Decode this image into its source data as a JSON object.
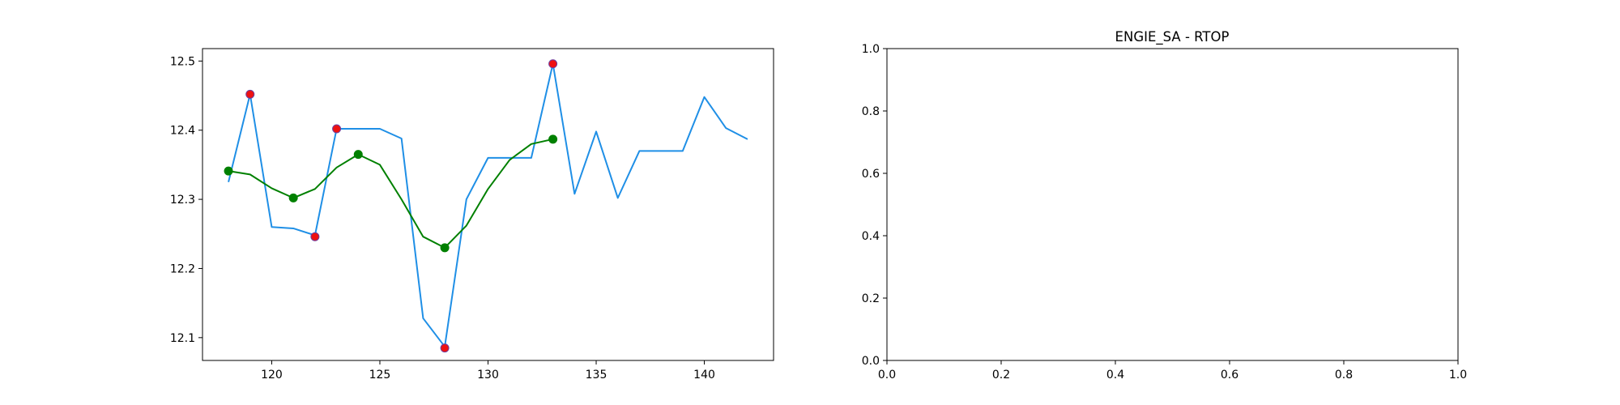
{
  "chart_data": [
    {
      "type": "line",
      "title": "",
      "xlabel": "",
      "ylabel": "",
      "xlim": [
        116.8,
        143.2
      ],
      "ylim": [
        12.067,
        12.518
      ],
      "x_ticks": [
        120,
        125,
        130,
        135,
        140
      ],
      "y_ticks": [
        12.1,
        12.2,
        12.3,
        12.4,
        12.5
      ],
      "grid": false,
      "legend": "none",
      "series": [
        {
          "style": "line",
          "color": "#1f8fe6",
          "x": [
            118,
            119,
            120,
            121,
            122,
            123,
            124,
            125,
            126,
            127,
            128,
            129,
            130,
            131,
            132,
            133,
            134,
            135,
            136,
            137,
            138,
            139,
            140,
            141,
            142
          ],
          "y": [
            12.325,
            12.452,
            12.26,
            12.258,
            12.248,
            12.402,
            12.402,
            12.402,
            12.388,
            12.128,
            12.087,
            12.3,
            12.36,
            12.36,
            12.36,
            12.496,
            12.308,
            12.398,
            12.302,
            12.37,
            12.37,
            12.37,
            12.448,
            12.403,
            12.387
          ]
        },
        {
          "style": "line",
          "color": "#008000",
          "x": [
            118,
            119,
            120,
            121,
            122,
            123,
            124,
            125,
            126,
            127,
            128,
            129,
            130,
            131,
            132,
            133
          ],
          "y": [
            12.341,
            12.336,
            12.316,
            12.302,
            12.315,
            12.346,
            12.365,
            12.35,
            12.3,
            12.246,
            12.23,
            12.262,
            12.315,
            12.357,
            12.38,
            12.387
          ]
        },
        {
          "style": "scatter",
          "color": "#ee1111",
          "x": [
            119,
            122,
            123,
            128,
            133
          ],
          "y": [
            12.452,
            12.246,
            12.402,
            12.085,
            12.496
          ]
        },
        {
          "style": "scatter",
          "color": "#008000",
          "x": [
            118,
            121,
            124,
            128,
            133
          ],
          "y": [
            12.341,
            12.302,
            12.365,
            12.23,
            12.387
          ]
        }
      ]
    },
    {
      "type": "line",
      "title": "ENGIE_SA - RTOP",
      "xlabel": "",
      "ylabel": "",
      "xlim": [
        0,
        1
      ],
      "ylim": [
        0,
        1
      ],
      "x_ticks": [
        "0.0",
        "0.2",
        "0.4",
        "0.6",
        "0.8",
        "1.0"
      ],
      "y_ticks": [
        "0.0",
        "0.2",
        "0.4",
        "0.6",
        "0.8",
        "1.0"
      ],
      "grid": false,
      "legend": "none",
      "series": []
    }
  ]
}
